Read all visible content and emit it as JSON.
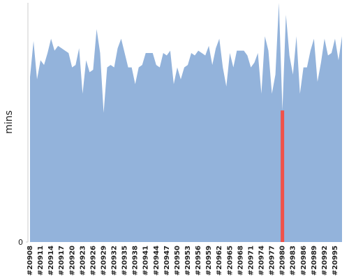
{
  "chart_data": {
    "type": "area",
    "ylabel": "mins",
    "categories": [
      "#20908",
      null,
      null,
      "#20911",
      null,
      null,
      "#20914",
      null,
      null,
      "#20917",
      null,
      null,
      "#20920",
      null,
      null,
      "#20923",
      null,
      null,
      "#20926",
      null,
      null,
      "#20929",
      null,
      null,
      "#20932",
      null,
      null,
      "#20935",
      null,
      null,
      "#20938",
      null,
      null,
      "#20941",
      null,
      null,
      "#20944",
      null,
      null,
      "#20947",
      null,
      null,
      "#20950",
      null,
      null,
      "#20953",
      null,
      null,
      "#20956",
      null,
      null,
      "#20959",
      null,
      null,
      "#20962",
      null,
      null,
      "#20965",
      null,
      null,
      "#20968",
      null,
      null,
      "#20971",
      null,
      null,
      "#20974",
      null,
      null,
      "#20977",
      null,
      null,
      "#20980",
      null,
      null,
      "#20983",
      null,
      null,
      "#20986",
      null,
      null,
      "#20989",
      null,
      null,
      "#20992",
      null,
      null,
      "#20995",
      null,
      null
    ],
    "values": [
      69,
      84,
      68,
      76,
      74,
      79,
      85,
      80,
      82,
      81,
      80,
      79,
      73,
      74,
      81,
      62,
      76,
      71,
      72,
      89,
      79,
      54,
      73,
      74,
      73,
      81,
      85,
      79,
      73,
      73,
      66,
      73,
      74,
      79,
      79,
      79,
      74,
      73,
      79,
      78,
      80,
      66,
      73,
      68,
      73,
      74,
      79,
      78,
      80,
      79,
      78,
      82,
      74,
      81,
      85,
      73,
      65,
      79,
      73,
      80,
      80,
      80,
      78,
      73,
      75,
      79,
      62,
      86,
      80,
      62,
      70,
      100,
      55,
      95,
      78,
      70,
      86,
      62,
      73,
      73,
      80,
      85,
      67,
      75,
      85,
      78,
      79,
      85,
      76,
      86
    ],
    "color": "#93b3db",
    "point_colors": [
      "#93b3db",
      "#93b3db",
      "#93b3db",
      "#93b3db",
      "#93b3db",
      "#93b3db",
      "#93b3db",
      "#93b3db",
      "#93b3db",
      "#93b3db",
      "#93b3db",
      "#93b3db",
      "#93b3db",
      "#93b3db",
      "#93b3db",
      "#93b3db",
      "#93b3db",
      "#93b3db",
      "#93b3db",
      "#93b3db",
      "#93b3db",
      "#93b3db",
      "#93b3db",
      "#93b3db",
      "#93b3db",
      "#93b3db",
      "#93b3db",
      "#93b3db",
      "#93b3db",
      "#93b3db",
      "#93b3db",
      "#93b3db",
      "#93b3db",
      "#93b3db",
      "#93b3db",
      "#93b3db",
      "#93b3db",
      "#93b3db",
      "#93b3db",
      "#93b3db",
      "#93b3db",
      "#93b3db",
      "#93b3db",
      "#93b3db",
      "#93b3db",
      "#93b3db",
      "#93b3db",
      "#93b3db",
      "#93b3db",
      "#93b3db",
      "#93b3db",
      "#93b3db",
      "#93b3db",
      "#93b3db",
      "#93b3db",
      "#93b3db",
      "#93b3db",
      "#93b3db",
      "#93b3db",
      "#93b3db",
      "#93b3db",
      "#93b3db",
      "#93b3db",
      "#93b3db",
      "#93b3db",
      "#93b3db",
      "#93b3db",
      "#93b3db",
      "#93b3db",
      "#93b3db",
      "#93b3db",
      "#93b3db",
      "#f0524a",
      "#93b3db",
      "#93b3db",
      "#93b3db",
      "#93b3db",
      "#93b3db",
      "#93b3db",
      "#93b3db",
      "#93b3db",
      "#93b3db",
      "#93b3db",
      "#93b3db",
      "#93b3db",
      "#93b3db",
      "#93b3db",
      "#93b3db",
      "#93b3db",
      "#93b3db"
    ],
    "ylim": [
      0,
      100
    ],
    "yticks": [
      0
    ]
  }
}
